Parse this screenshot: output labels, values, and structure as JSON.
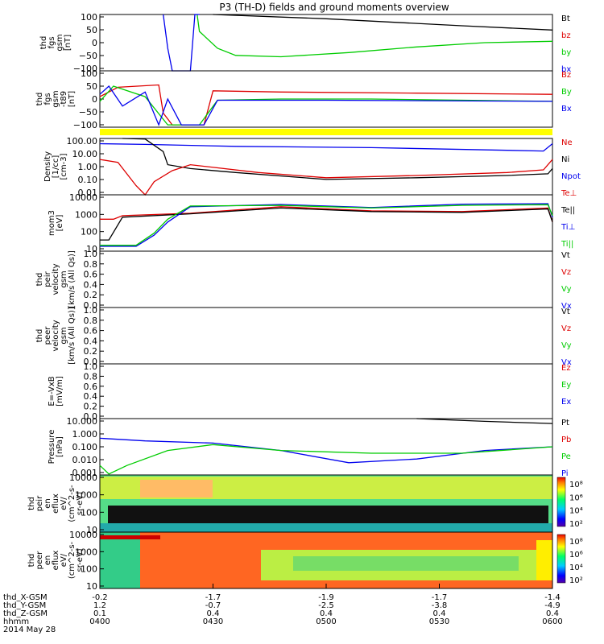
{
  "title": "P3 (TH-D) fields and ground moments overview",
  "colors": {
    "black": "#000000",
    "red": "#dd0000",
    "green": "#00cc00",
    "blue": "#0000ee",
    "yellow": "#ffff00"
  },
  "chart_data": [
    {
      "type": "line",
      "ylabel": [
        "thd",
        "fgs",
        "gsm",
        "[nT]"
      ],
      "yticks": [
        "100",
        "50",
        "0",
        "−50",
        "−100"
      ],
      "yrange": [
        -100,
        100
      ],
      "legend": [
        {
          "label": "Bt",
          "color": "black"
        },
        {
          "label": "bz",
          "color": "red"
        },
        {
          "label": "by",
          "color": "green"
        },
        {
          "label": "bx",
          "color": "blue"
        }
      ],
      "series": [
        {
          "name": "Bt",
          "color": "black",
          "x": [
            0.25,
            0.5,
            0.8,
            1.0
          ],
          "y": [
            100,
            85,
            60,
            45
          ]
        },
        {
          "name": "by",
          "color": "green",
          "x": [
            0.215,
            0.22,
            0.26,
            0.3,
            0.4,
            0.55,
            0.7,
            0.85,
            1.0
          ],
          "y": [
            100,
            40,
            -20,
            -45,
            -50,
            -35,
            -15,
            0,
            5
          ]
        },
        {
          "name": "bx",
          "color": "blue",
          "x": [
            0.14,
            0.15,
            0.16,
            0.17,
            0.2,
            0.21,
            0.22
          ],
          "y": [
            100,
            -20,
            -100,
            -100,
            -100,
            100,
            100
          ]
        }
      ]
    },
    {
      "type": "line",
      "ylabel": [
        "thd",
        "fgs",
        "gsm",
        "-t89",
        "[nT]"
      ],
      "yticks": [
        "100",
        "50",
        "0",
        "−50",
        "−100"
      ],
      "yrange": [
        -120,
        120
      ],
      "legend": [
        {
          "label": "Bz",
          "color": "red"
        },
        {
          "label": "By",
          "color": "green"
        },
        {
          "label": "Bx",
          "color": "blue"
        }
      ],
      "series": [
        {
          "name": "Bz",
          "color": "red",
          "x": [
            0,
            0.04,
            0.13,
            0.14,
            0.16,
            0.2,
            0.23,
            0.25,
            0.4,
            0.7,
            1.0
          ],
          "y": [
            10,
            50,
            60,
            -60,
            -110,
            -110,
            -110,
            35,
            30,
            25,
            20
          ]
        },
        {
          "name": "By",
          "color": "green",
          "x": [
            0,
            0.03,
            0.1,
            0.15,
            0.22,
            0.26,
            0.4,
            0.6,
            1.0
          ],
          "y": [
            -10,
            55,
            10,
            -110,
            -110,
            -5,
            0,
            0,
            -10
          ]
        },
        {
          "name": "Bx",
          "color": "blue",
          "x": [
            0,
            0.02,
            0.05,
            0.1,
            0.13,
            0.15,
            0.18,
            0.23,
            0.26,
            0.5,
            1.0
          ],
          "y": [
            20,
            55,
            -30,
            30,
            -110,
            0,
            -110,
            -110,
            -5,
            -5,
            -10
          ]
        }
      ]
    },
    {
      "type": "line",
      "yscale": "log",
      "ylabel": [
        "Density",
        "[1/cc]",
        "[cm-3]"
      ],
      "yticks": [
        "100.00",
        "10.00",
        "1.00",
        "0.10",
        "0.01"
      ],
      "yrange": [
        0.01,
        200
      ],
      "legend": [
        {
          "label": "Ne",
          "color": "red"
        },
        {
          "label": "Ni",
          "color": "black"
        },
        {
          "label": "Npot",
          "color": "blue"
        },
        {
          "label": "Te⊥",
          "color": "red"
        },
        {
          "label": "Te||",
          "color": "black"
        },
        {
          "label": "Ti⊥",
          "color": "blue"
        },
        {
          "label": "Ti||",
          "color": "green"
        }
      ],
      "series": [
        {
          "name": "Npot",
          "color": "blue",
          "x": [
            0,
            0.1,
            0.3,
            0.6,
            0.9,
            0.98,
            1.0
          ],
          "y": [
            80,
            70,
            50,
            40,
            25,
            22,
            80
          ]
        },
        {
          "name": "Ni",
          "color": "black",
          "x": [
            0.05,
            0.1,
            0.14,
            0.15,
            0.2,
            0.3,
            0.5,
            0.7,
            0.9,
            0.99,
            1.0
          ],
          "y": [
            200,
            180,
            20,
            2,
            1,
            0.5,
            0.15,
            0.2,
            0.3,
            0.4,
            1
          ]
        },
        {
          "name": "Ne",
          "color": "red",
          "x": [
            0,
            0.04,
            0.08,
            0.1,
            0.12,
            0.16,
            0.2,
            0.35,
            0.5,
            0.7,
            0.9,
            0.98,
            1.0
          ],
          "y": [
            5,
            3,
            0.05,
            0.01,
            0.1,
            0.7,
            2,
            0.5,
            0.2,
            0.3,
            0.5,
            0.8,
            5
          ]
        }
      ]
    },
    {
      "type": "line",
      "yscale": "log",
      "ylabel": [
        "mom3",
        "[eV]"
      ],
      "yticks": [
        "10000",
        "1000",
        "100",
        "10"
      ],
      "yrange": [
        3,
        10000
      ],
      "legend": [],
      "series": [
        {
          "name": "Te⊥",
          "color": "red",
          "x": [
            0,
            0.03,
            0.05,
            0.2,
            0.4,
            0.6,
            0.8,
            0.99,
            1.0
          ],
          "y": [
            300,
            300,
            500,
            700,
            1800,
            1000,
            900,
            1500,
            200
          ]
        },
        {
          "name": "Te||",
          "color": "black",
          "x": [
            0,
            0.02,
            0.05,
            0.2,
            0.4,
            0.6,
            0.8,
            0.99,
            1.0
          ],
          "y": [
            15,
            15,
            400,
            650,
            1500,
            900,
            800,
            1300,
            200
          ]
        },
        {
          "name": "Ti⊥",
          "color": "blue",
          "x": [
            0,
            0.08,
            0.12,
            0.15,
            0.2,
            0.4,
            0.6,
            0.8,
            0.99,
            1.0
          ],
          "y": [
            6,
            6,
            30,
            200,
            1800,
            2500,
            1600,
            2600,
            2800,
            400
          ]
        },
        {
          "name": "Ti||",
          "color": "green",
          "x": [
            0,
            0.08,
            0.12,
            0.15,
            0.2,
            0.4,
            0.6,
            0.8,
            0.99,
            1.0
          ],
          "y": [
            7,
            7,
            40,
            300,
            2000,
            2200,
            1500,
            2200,
            2400,
            500
          ]
        }
      ]
    },
    {
      "type": "line",
      "ylabel": [
        "thd",
        "peir",
        "velocity",
        "gsm",
        "[km/s (All Qs)]"
      ],
      "yticks": [
        "1.0",
        "0.8",
        "0.6",
        "0.4",
        "0.2",
        "0.0"
      ],
      "yrange": [
        0,
        1
      ],
      "legend": [
        {
          "label": "Vt",
          "color": "black"
        },
        {
          "label": "Vz",
          "color": "red"
        },
        {
          "label": "Vy",
          "color": "green"
        },
        {
          "label": "Vx",
          "color": "blue"
        }
      ],
      "series": []
    },
    {
      "type": "line",
      "ylabel": [
        "thd",
        "peer",
        "velocity",
        "gsm",
        "[km/s (All Qs)]"
      ],
      "yticks": [
        "1.0",
        "0.8",
        "0.6",
        "0.4",
        "0.2",
        "0.0"
      ],
      "yrange": [
        0,
        1
      ],
      "legend": [
        {
          "label": "Vt",
          "color": "black"
        },
        {
          "label": "Vz",
          "color": "red"
        },
        {
          "label": "Vy",
          "color": "green"
        },
        {
          "label": "Vx",
          "color": "blue"
        }
      ],
      "series": []
    },
    {
      "type": "line",
      "ylabel": [
        "E=-VxB",
        "[mV/m]"
      ],
      "yticks": [
        "1.0",
        "0.8",
        "0.6",
        "0.4",
        "0.2",
        "0.0"
      ],
      "yrange": [
        0,
        1
      ],
      "legend": [
        {
          "label": "Ez",
          "color": "red"
        },
        {
          "label": "Ey",
          "color": "green"
        },
        {
          "label": "Ex",
          "color": "blue"
        }
      ],
      "series": []
    },
    {
      "type": "line",
      "yscale": "log",
      "ylabel": [
        "Pressure",
        "[nPa]"
      ],
      "yticks": [
        "10.000",
        "1.000",
        "0.100",
        "0.010",
        "0.001"
      ],
      "yrange": [
        0.0005,
        20
      ],
      "legend": [
        {
          "label": "Pt",
          "color": "black"
        },
        {
          "label": "Pb",
          "color": "red"
        },
        {
          "label": "Pe",
          "color": "green"
        },
        {
          "label": "Pi",
          "color": "blue"
        }
      ],
      "series": [
        {
          "name": "Pt",
          "color": "black",
          "x": [
            0.7,
            0.85,
            1.0
          ],
          "y": [
            20,
            12,
            8
          ]
        },
        {
          "name": "Pi",
          "color": "blue",
          "x": [
            0,
            0.1,
            0.25,
            0.4,
            0.55,
            0.7,
            0.85,
            1.0
          ],
          "y": [
            0.5,
            0.3,
            0.2,
            0.05,
            0.005,
            0.01,
            0.05,
            0.1
          ]
        },
        {
          "name": "Pe",
          "color": "green",
          "x": [
            0,
            0.02,
            0.06,
            0.15,
            0.25,
            0.4,
            0.6,
            0.8,
            1.0
          ],
          "y": [
            0.003,
            0.0006,
            0.003,
            0.05,
            0.15,
            0.05,
            0.03,
            0.03,
            0.1
          ]
        }
      ]
    },
    {
      "type": "heatmap",
      "ylabel": [
        "thd",
        "peir",
        "en",
        "eflux",
        "eV/",
        "(cm^2-s-",
        "sr-eV)"
      ],
      "yticks": [
        "10000",
        "1000",
        "100",
        "10"
      ],
      "colorbar": [
        "10⁸",
        "10⁶",
        "10⁴",
        "10²"
      ]
    },
    {
      "type": "heatmap",
      "ylabel": [
        "thd",
        "peer",
        "en",
        "eflux",
        "eV/",
        "(cm^2-s-",
        "sr-eV)"
      ],
      "yticks": [
        "10000",
        "1000",
        "100",
        "10"
      ],
      "colorbar": [
        "10⁸",
        "10⁶",
        "10⁴",
        "10²"
      ]
    }
  ],
  "xaxis": {
    "row_labels": [
      "thd_X-GSM",
      "thd_Y-GSM",
      "thd_Z-GSM",
      "hhmm",
      "2014 May 28"
    ],
    "columns": [
      {
        "x": "-0.2",
        "y": "1.2",
        "z": "0.1",
        "t": "0400"
      },
      {
        "x": "-1.7",
        "y": "-0.7",
        "z": "0.4",
        "t": "0430"
      },
      {
        "x": "-1.9",
        "y": "-2.5",
        "z": "0.4",
        "t": "0500"
      },
      {
        "x": "-1.7",
        "y": "-3.8",
        "z": "0.4",
        "t": "0530"
      },
      {
        "x": "-1.4",
        "y": "-4.9",
        "z": "0.4",
        "t": "0600"
      }
    ]
  }
}
